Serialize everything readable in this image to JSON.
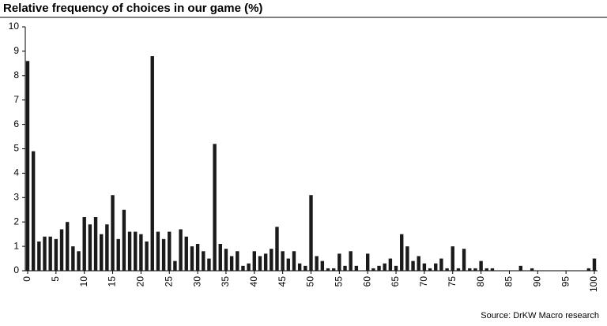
{
  "chart_data": {
    "type": "bar",
    "title": "Relative frequency of choices in our game (%)",
    "source": "Source: DrKW Macro research",
    "color": "#1a1a1a",
    "x": [
      0,
      1,
      2,
      3,
      4,
      5,
      6,
      7,
      8,
      9,
      10,
      11,
      12,
      13,
      14,
      15,
      16,
      17,
      18,
      19,
      20,
      21,
      22,
      23,
      24,
      25,
      26,
      27,
      28,
      29,
      30,
      31,
      32,
      33,
      34,
      35,
      36,
      37,
      38,
      39,
      40,
      41,
      42,
      43,
      44,
      45,
      46,
      47,
      48,
      49,
      50,
      51,
      52,
      53,
      54,
      55,
      56,
      57,
      58,
      59,
      60,
      61,
      62,
      63,
      64,
      65,
      66,
      67,
      68,
      69,
      70,
      71,
      72,
      73,
      74,
      75,
      76,
      77,
      78,
      79,
      80,
      81,
      82,
      83,
      84,
      85,
      86,
      87,
      88,
      89,
      90,
      91,
      92,
      93,
      94,
      95,
      96,
      97,
      98,
      99,
      100
    ],
    "values": [
      8.6,
      4.9,
      1.2,
      1.4,
      1.4,
      1.3,
      1.7,
      2.0,
      1.0,
      0.8,
      2.2,
      1.9,
      2.2,
      1.5,
      1.9,
      3.1,
      1.3,
      2.5,
      1.6,
      1.6,
      1.5,
      1.2,
      8.8,
      1.6,
      1.3,
      1.6,
      0.4,
      1.7,
      1.4,
      1.0,
      1.1,
      0.8,
      0.5,
      5.2,
      1.1,
      0.9,
      0.6,
      0.8,
      0.2,
      0.3,
      0.8,
      0.6,
      0.7,
      0.9,
      1.8,
      0.8,
      0.5,
      0.8,
      0.3,
      0.2,
      3.1,
      0.6,
      0.4,
      0.1,
      0.1,
      0.7,
      0.2,
      0.8,
      0.2,
      0,
      0.7,
      0.1,
      0.2,
      0.3,
      0.5,
      0.2,
      1.5,
      1.0,
      0.4,
      0.6,
      0.3,
      0.1,
      0.3,
      0.5,
      0.1,
      1.0,
      0.1,
      0.9,
      0.1,
      0.1,
      0.4,
      0.1,
      0.1,
      0,
      0,
      0,
      0,
      0.2,
      0,
      0.1,
      0,
      0,
      0,
      0,
      0,
      0,
      0,
      0,
      0,
      0.1,
      0.5
    ],
    "xlim": [
      0,
      100
    ],
    "xticks": [
      0,
      5,
      10,
      15,
      20,
      25,
      30,
      35,
      40,
      45,
      50,
      55,
      60,
      65,
      70,
      75,
      80,
      85,
      90,
      95,
      100
    ],
    "ylim": [
      0,
      10
    ],
    "yticks": [
      0,
      1,
      2,
      3,
      4,
      5,
      6,
      7,
      8,
      9,
      10
    ]
  }
}
